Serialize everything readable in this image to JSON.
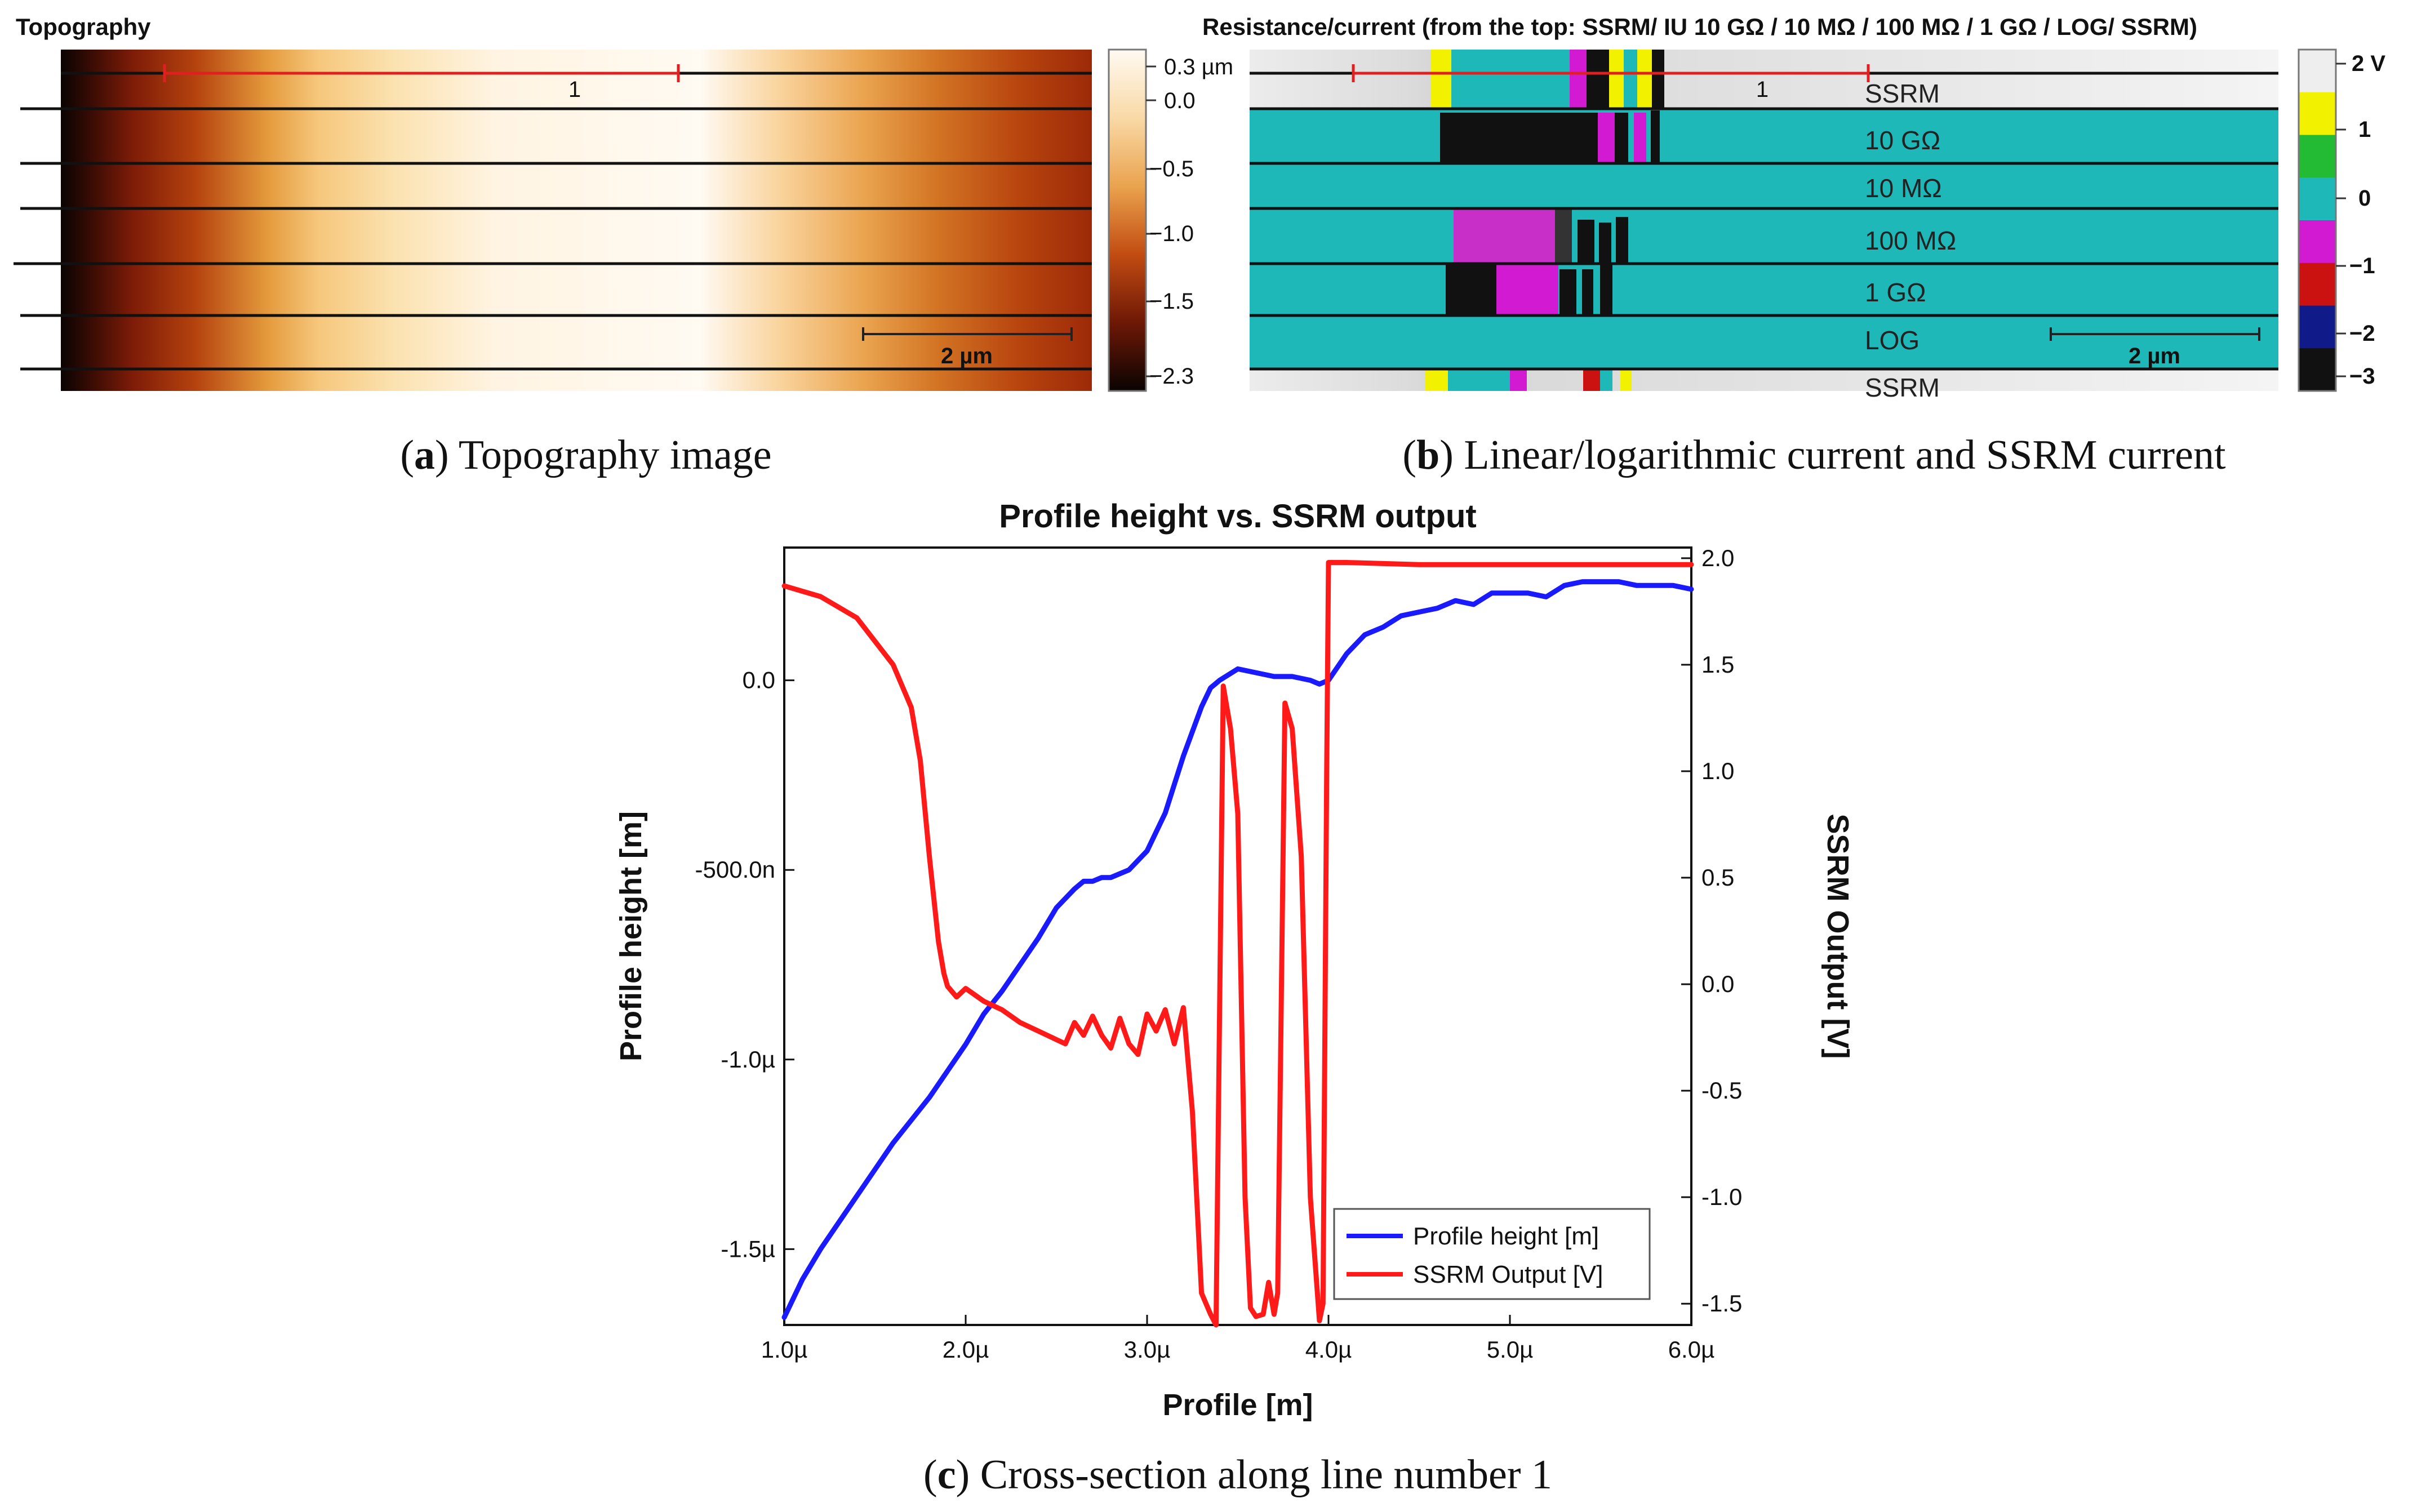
{
  "panel_a": {
    "title": "Topography",
    "caption_letter": "a",
    "caption_text": " Topography image",
    "scan_line_label": "1",
    "scale_bar_label": "2 µm",
    "colorbar_ticks": [
      "0.3 µm",
      "0.0",
      "−0.5",
      "−1.0",
      "−1.5",
      "−2.3"
    ]
  },
  "panel_b": {
    "title": "Resistance/current (from the top: SSRM/ IU 10 GΩ / 10 MΩ / 100 MΩ / 1 GΩ / LOG/ SSRM)",
    "caption_letter": "b",
    "caption_text": " Linear/logarithmic current and SSRM current",
    "scan_line_label": "1",
    "scale_bar_label": "2 µm",
    "row_labels": [
      "SSRM",
      "10 GΩ",
      "10 MΩ",
      "100 MΩ",
      "1 GΩ",
      "LOG",
      "SSRM"
    ],
    "colorbar_ticks": [
      "2 V",
      "1",
      "0",
      "−1",
      "−2",
      "−3"
    ],
    "colorbar_colors": [
      "#eeeeee",
      "#f2f200",
      "#22bb33",
      "#1fb8b8",
      "#d21ad2",
      "#cc1111",
      "#101a88",
      "#111111"
    ]
  },
  "panel_c": {
    "caption_letter": "c",
    "caption_text": " Cross-section along line number 1"
  },
  "chart_data": {
    "type": "line",
    "title": "Profile height vs. SSRM output",
    "xlabel": "Profile [m]",
    "ylabel": "Profile height [m]",
    "y2label": "SSRM Output [V]",
    "xlim": [
      1.0,
      6.0
    ],
    "ylim": [
      -1.7,
      0.35
    ],
    "y2lim": [
      -1.6,
      2.05
    ],
    "x_ticks": [
      1,
      2,
      3,
      4,
      5,
      6
    ],
    "x_tick_labels": [
      "1.0µ",
      "2.0µ",
      "3.0µ",
      "4.0µ",
      "5.0µ",
      "6.0µ"
    ],
    "y_ticks": [
      0,
      -0.5,
      -1.0,
      -1.5
    ],
    "y_tick_labels": [
      "0.0",
      "-500.0n",
      "-1.0µ",
      "-1.5µ"
    ],
    "y2_ticks": [
      2.0,
      1.5,
      1.0,
      0.5,
      0.0,
      -0.5,
      -1.0,
      -1.5
    ],
    "y2_tick_labels": [
      "2.0",
      "1.5",
      "1.0",
      "0.5",
      "0.0",
      "-0.5",
      "-1.0",
      "-1.5"
    ],
    "legend_position": "bottom-right",
    "series": [
      {
        "name": "Profile height [m]",
        "axis": "left",
        "color": "#1a1aff",
        "x": [
          1.0,
          1.1,
          1.2,
          1.3,
          1.4,
          1.5,
          1.6,
          1.7,
          1.8,
          1.9,
          2.0,
          2.1,
          2.2,
          2.3,
          2.4,
          2.5,
          2.6,
          2.65,
          2.7,
          2.75,
          2.8,
          2.9,
          3.0,
          3.1,
          3.2,
          3.3,
          3.35,
          3.4,
          3.5,
          3.6,
          3.7,
          3.8,
          3.9,
          3.95,
          4.0,
          4.1,
          4.2,
          4.3,
          4.4,
          4.5,
          4.6,
          4.7,
          4.8,
          4.9,
          5.0,
          5.1,
          5.2,
          5.3,
          5.4,
          5.5,
          5.6,
          5.7,
          5.8,
          5.9,
          6.0
        ],
        "y": [
          -1.68,
          -1.58,
          -1.5,
          -1.43,
          -1.36,
          -1.29,
          -1.22,
          -1.16,
          -1.1,
          -1.03,
          -0.96,
          -0.88,
          -0.82,
          -0.75,
          -0.68,
          -0.6,
          -0.55,
          -0.53,
          -0.53,
          -0.52,
          -0.52,
          -0.5,
          -0.45,
          -0.35,
          -0.2,
          -0.07,
          -0.02,
          0.0,
          0.03,
          0.02,
          0.01,
          0.01,
          0.0,
          -0.01,
          0.0,
          0.07,
          0.12,
          0.14,
          0.17,
          0.18,
          0.19,
          0.21,
          0.2,
          0.23,
          0.23,
          0.23,
          0.22,
          0.25,
          0.26,
          0.26,
          0.26,
          0.25,
          0.25,
          0.25,
          0.24
        ]
      },
      {
        "name": "SSRM Output [V]",
        "axis": "right",
        "color": "#ff1a1a",
        "x": [
          1.0,
          1.2,
          1.4,
          1.6,
          1.7,
          1.75,
          1.8,
          1.85,
          1.88,
          1.9,
          1.95,
          2.0,
          2.1,
          2.2,
          2.3,
          2.4,
          2.5,
          2.55,
          2.6,
          2.65,
          2.7,
          2.75,
          2.8,
          2.85,
          2.9,
          2.95,
          3.0,
          3.05,
          3.1,
          3.15,
          3.2,
          3.25,
          3.3,
          3.35,
          3.38,
          3.42,
          3.46,
          3.5,
          3.54,
          3.57,
          3.6,
          3.64,
          3.67,
          3.7,
          3.72,
          3.76,
          3.8,
          3.85,
          3.9,
          3.95,
          3.97,
          3.99,
          4.0,
          4.1,
          4.5,
          5.0,
          5.5,
          6.0
        ],
        "y": [
          1.87,
          1.82,
          1.72,
          1.5,
          1.3,
          1.05,
          0.6,
          0.2,
          0.05,
          -0.01,
          -0.06,
          -0.02,
          -0.08,
          -0.12,
          -0.18,
          -0.22,
          -0.26,
          -0.28,
          -0.18,
          -0.24,
          -0.15,
          -0.24,
          -0.3,
          -0.16,
          -0.28,
          -0.33,
          -0.14,
          -0.22,
          -0.12,
          -0.28,
          -0.11,
          -0.6,
          -1.45,
          -1.55,
          -1.6,
          1.4,
          1.2,
          0.8,
          -1.0,
          -1.52,
          -1.56,
          -1.55,
          -1.4,
          -1.55,
          -1.45,
          1.32,
          1.2,
          0.6,
          -1.0,
          -1.58,
          -1.5,
          1.0,
          1.98,
          1.98,
          1.97,
          1.97,
          1.97,
          1.97
        ]
      }
    ]
  }
}
